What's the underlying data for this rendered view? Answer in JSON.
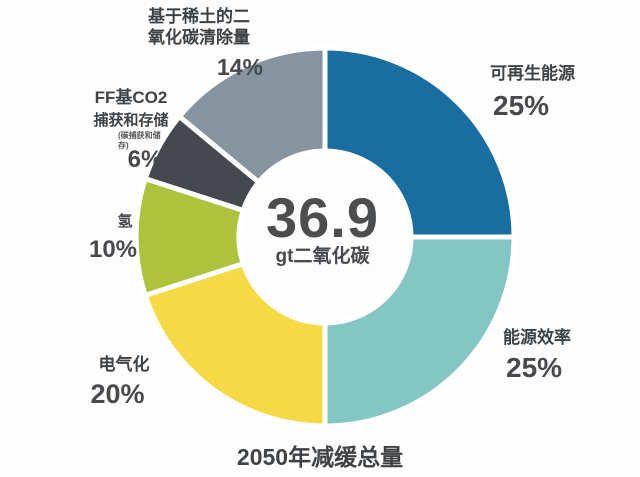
{
  "chart_data": {
    "type": "pie",
    "variant": "donut",
    "title": "2050年减缓总量",
    "center": {
      "value": "36.9",
      "unit": "gt二氧化碳"
    },
    "start_angle_deg": 0,
    "direction": "clockwise",
    "gap_color": "#ffffff",
    "slices": [
      {
        "key": "renewables",
        "label": "可再生能源",
        "value": 25,
        "pct_label": "25%",
        "color": "#1a6da0"
      },
      {
        "key": "efficiency",
        "label": "能源效率",
        "value": 25,
        "pct_label": "25%",
        "color": "#84c6c4"
      },
      {
        "key": "electrification",
        "label": "电气化",
        "value": 20,
        "pct_label": "20%",
        "color": "#f6d944"
      },
      {
        "key": "hydrogen",
        "label": "氢",
        "value": 10,
        "pct_label": "10%",
        "color": "#aec23e"
      },
      {
        "key": "ff_ccs",
        "label": "FF基CO2捕获和存储",
        "label_lines": [
          "FF基CO2",
          "捕获和存储"
        ],
        "sub_label": "(碳捕获和储存)",
        "value": 6,
        "pct_label": "6%",
        "color": "#45484e"
      },
      {
        "key": "rare_earth",
        "label": "基于稀土的二氧化碳清除量",
        "label_lines": [
          "基于稀土的二",
          "氧化碳清除量"
        ],
        "value": 14,
        "pct_label": "14%",
        "color": "#8694a0"
      }
    ]
  }
}
